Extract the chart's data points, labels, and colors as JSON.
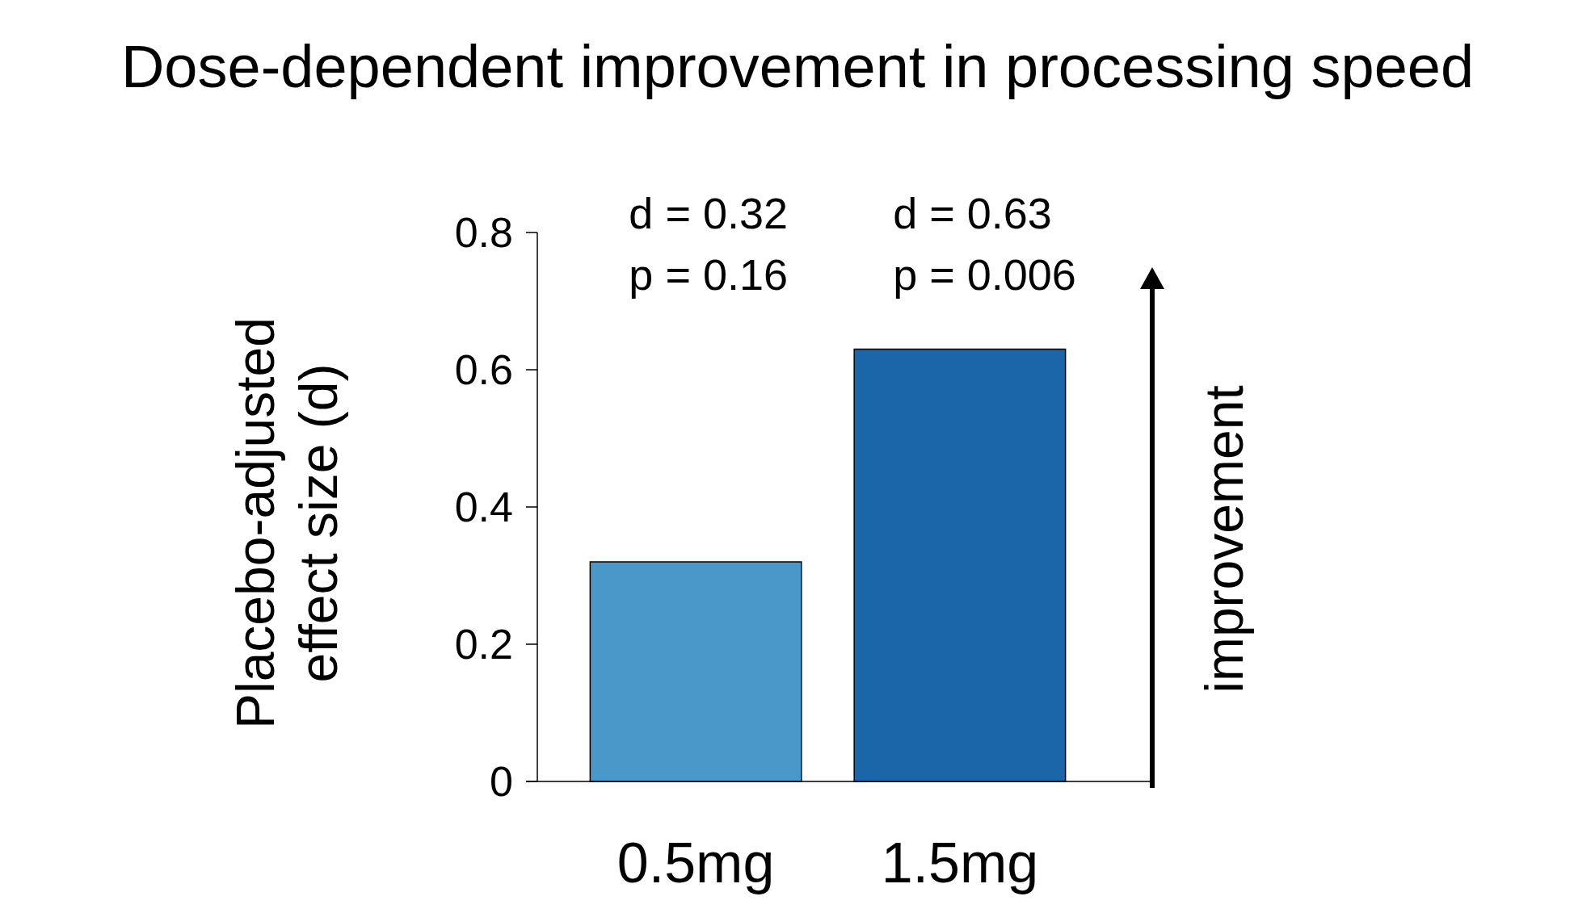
{
  "chart_data": {
    "type": "bar",
    "title": "Dose-dependent improvement in processing speed",
    "ylabel": "Placebo-adjusted\neffect size (d)",
    "categories": [
      "0.5mg",
      "1.5mg"
    ],
    "values": [
      0.32,
      0.63
    ],
    "colors": [
      "#4a97c9",
      "#1b65a9"
    ],
    "ylim": [
      0,
      0.8
    ],
    "yticks": [
      0,
      0.2,
      0.4,
      0.6,
      0.8
    ],
    "annotations": [
      "d = 0.32\np = 0.16",
      "d = 0.63\np = 0.006",
      "improvement"
    ]
  }
}
